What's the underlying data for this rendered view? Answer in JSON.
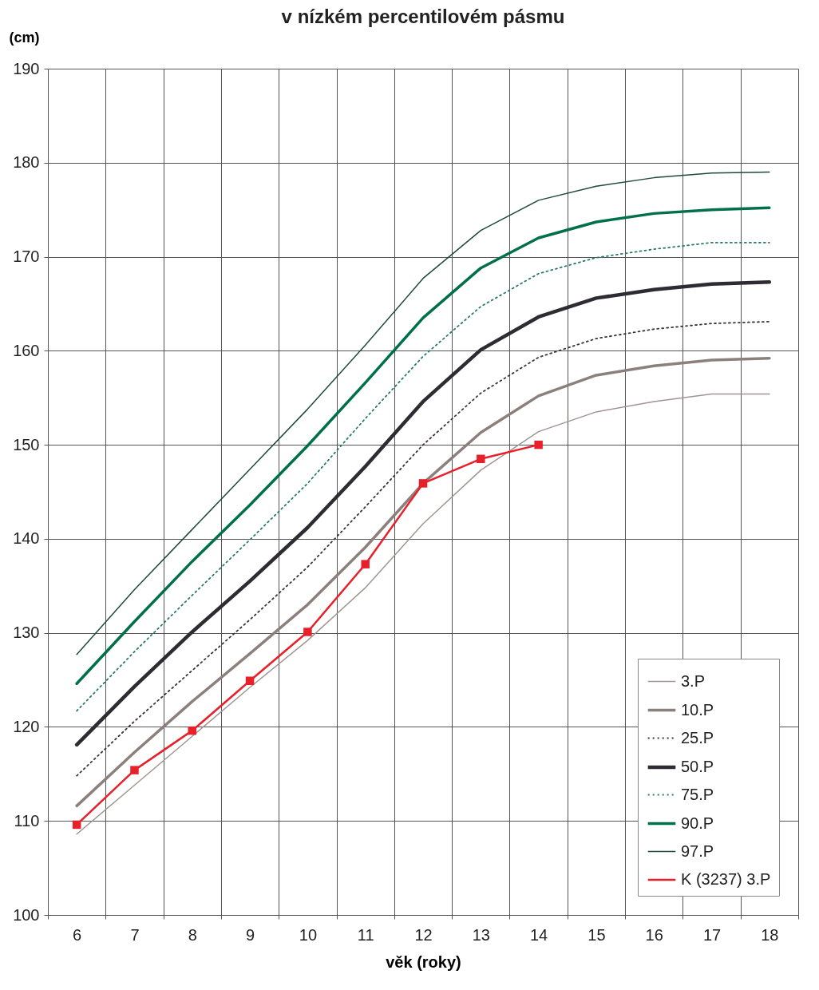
{
  "chart_data": {
    "type": "line",
    "title": "v nízkém percentilovém pásmu",
    "ylabel": "(cm)",
    "xlabel": "věk (roky)",
    "categories": [
      "6",
      "7",
      "8",
      "9",
      "10",
      "11",
      "12",
      "13",
      "14",
      "15",
      "16",
      "17",
      "18"
    ],
    "ylim": [
      100,
      190
    ],
    "yticks": [
      100,
      110,
      120,
      130,
      140,
      150,
      160,
      170,
      180,
      190
    ],
    "grid": true,
    "legend": "bottom right",
    "series": [
      {
        "name": "3.P",
        "color": "#a09591",
        "line_style": "solid",
        "marker": "none",
        "values": [
          108.6,
          113.8,
          119.0,
          124.2,
          129.2,
          134.8,
          141.6,
          147.3,
          151.4,
          153.5,
          154.6,
          155.4,
          155.4
        ]
      },
      {
        "name": "10.P",
        "color": "#8c807c",
        "line_style": "solid",
        "marker": "none",
        "values": [
          111.6,
          117.3,
          122.7,
          127.8,
          133.0,
          139.1,
          145.9,
          151.3,
          155.2,
          157.4,
          158.4,
          159.0,
          159.2
        ]
      },
      {
        "name": "25.P",
        "color": "#3d3535",
        "line_style": "dotted",
        "marker": "none",
        "values": [
          114.8,
          120.6,
          126.0,
          131.4,
          137.0,
          143.4,
          150.0,
          155.5,
          159.3,
          161.3,
          162.3,
          162.9,
          163.1
        ]
      },
      {
        "name": "50.P",
        "color": "#2e2c32",
        "line_style": "solid",
        "marker": "none",
        "values": [
          118.1,
          124.3,
          130.1,
          135.5,
          141.2,
          147.7,
          154.6,
          160.1,
          163.6,
          165.6,
          166.5,
          167.1,
          167.3
        ]
      },
      {
        "name": "75.P",
        "color": "#2a7a6a",
        "line_style": "dotted",
        "marker": "none",
        "values": [
          121.7,
          128.0,
          134.0,
          139.9,
          145.9,
          152.8,
          159.4,
          164.7,
          168.2,
          169.9,
          170.8,
          171.5,
          171.5
        ]
      },
      {
        "name": "90.P",
        "color": "#00704a",
        "line_style": "solid",
        "marker": "none",
        "values": [
          124.6,
          131.2,
          137.6,
          143.6,
          149.9,
          156.6,
          163.5,
          168.8,
          172.0,
          173.7,
          174.6,
          175.0,
          175.2
        ]
      },
      {
        "name": "97.P",
        "color": "#1e4a3a",
        "line_style": "solid",
        "marker": "none",
        "values": [
          127.7,
          134.6,
          141.0,
          147.4,
          153.8,
          160.6,
          167.7,
          172.8,
          176.0,
          177.5,
          178.4,
          178.9,
          179.0
        ]
      },
      {
        "name": "K (3237) 3.P",
        "color": "#e8202a",
        "line_style": "solid",
        "marker": "square",
        "values": [
          109.6,
          115.4,
          119.6,
          124.9,
          130.1,
          137.3,
          145.9,
          148.5,
          150.0,
          null,
          null,
          null,
          null
        ]
      }
    ]
  }
}
